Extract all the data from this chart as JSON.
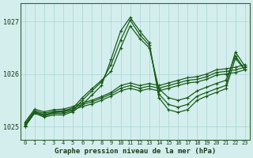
{
  "xlabel": "Graphe pression niveau de la mer (hPa)",
  "bg_color": "#d4eeee",
  "plot_bg_color": "#d4eeee",
  "grid_color": "#b0d8d8",
  "line_color": "#1a5c1a",
  "ylim": [
    1024.75,
    1027.35
  ],
  "xlim": [
    -0.5,
    23.5
  ],
  "yticks": [
    1025,
    1026,
    1027
  ],
  "xticks": [
    0,
    1,
    2,
    3,
    4,
    5,
    6,
    7,
    8,
    9,
    10,
    11,
    12,
    13,
    14,
    15,
    16,
    17,
    18,
    19,
    20,
    21,
    22,
    23
  ],
  "series": [
    [
      1025.02,
      1025.28,
      1025.22,
      1025.27,
      1025.28,
      1025.32,
      1025.38,
      1025.43,
      1025.5,
      1025.58,
      1025.68,
      1025.73,
      1025.68,
      1025.72,
      1025.68,
      1025.73,
      1025.78,
      1025.83,
      1025.85,
      1025.9,
      1025.98,
      1026.0,
      1026.03,
      1026.08
    ],
    [
      1025.05,
      1025.3,
      1025.25,
      1025.29,
      1025.3,
      1025.35,
      1025.42,
      1025.47,
      1025.54,
      1025.62,
      1025.73,
      1025.78,
      1025.73,
      1025.77,
      1025.73,
      1025.78,
      1025.83,
      1025.88,
      1025.9,
      1025.95,
      1026.03,
      1026.05,
      1026.08,
      1026.13
    ],
    [
      1025.08,
      1025.33,
      1025.28,
      1025.32,
      1025.33,
      1025.38,
      1025.45,
      1025.5,
      1025.57,
      1025.65,
      1025.78,
      1025.83,
      1025.78,
      1025.82,
      1025.78,
      1025.83,
      1025.88,
      1025.93,
      1025.95,
      1026.0,
      1026.08,
      1026.1,
      1026.13,
      1026.18
    ],
    [
      1025.02,
      1025.28,
      1025.22,
      1025.27,
      1025.28,
      1025.35,
      1025.55,
      1025.72,
      1025.88,
      1026.05,
      1026.5,
      1026.92,
      1026.68,
      1026.5,
      1025.72,
      1025.55,
      1025.5,
      1025.55,
      1025.68,
      1025.75,
      1025.82,
      1025.88,
      1026.35,
      1026.08
    ],
    [
      1025.0,
      1025.27,
      1025.2,
      1025.25,
      1025.25,
      1025.3,
      1025.5,
      1025.68,
      1025.85,
      1026.18,
      1026.65,
      1027.03,
      1026.75,
      1026.55,
      1025.62,
      1025.42,
      1025.37,
      1025.42,
      1025.58,
      1025.65,
      1025.72,
      1025.78,
      1026.42,
      1026.15
    ],
    [
      1025.0,
      1025.25,
      1025.18,
      1025.22,
      1025.22,
      1025.28,
      1025.42,
      1025.6,
      1025.78,
      1026.28,
      1026.82,
      1027.08,
      1026.82,
      1026.6,
      1025.55,
      1025.32,
      1025.27,
      1025.32,
      1025.5,
      1025.58,
      1025.65,
      1025.72,
      1026.3,
      1026.08
    ]
  ]
}
